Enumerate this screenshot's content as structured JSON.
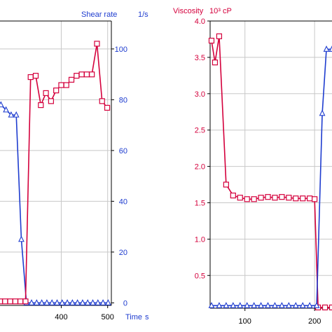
{
  "colors": {
    "viscosity": "#d4003c",
    "shear_rate": "#1e3ccf",
    "grid": "#c8c8c8",
    "axis": "#000000",
    "label_blue": "#1e3ccf",
    "label_red": "#d4003c"
  },
  "chart_data": [
    {
      "type": "line",
      "title": "",
      "xlabel": "Time s",
      "xlabel_unit": "s",
      "x_axis_label": "Time",
      "x_ticks": [
        400,
        500
      ],
      "xlim": [
        268,
        508
      ],
      "y2label": "Shear rate",
      "y2_unit": "1/s",
      "y2_ticks": [
        0,
        20,
        40,
        60,
        80,
        100
      ],
      "y2lim": [
        -1,
        111
      ],
      "grid": true,
      "series": [
        {
          "name": "Viscosity",
          "axis": "left",
          "ylim": [
            0.97,
            3.1
          ],
          "marker": "square",
          "x": [
            268,
            279,
            290,
            301,
            312,
            323,
            334,
            345,
            356,
            367,
            378,
            389,
            400,
            411,
            422,
            433,
            444,
            455,
            466,
            477,
            488,
            499
          ],
          "y": [
            1.0,
            1.0,
            1.0,
            1.0,
            1.0,
            1.0,
            2.68,
            2.69,
            2.47,
            2.56,
            2.5,
            2.58,
            2.62,
            2.62,
            2.66,
            2.69,
            2.7,
            2.7,
            2.7,
            2.93,
            2.5,
            2.45
          ]
        },
        {
          "name": "Shear rate",
          "axis": "right",
          "marker": "triangle",
          "x": [
            270,
            281,
            292,
            303,
            314,
            325,
            336,
            347,
            358,
            369,
            380,
            391,
            402,
            413,
            424,
            435,
            446,
            457,
            468,
            479,
            490,
            501
          ],
          "y": [
            78,
            76,
            74,
            74,
            25,
            0,
            0,
            0,
            0,
            0,
            0,
            0,
            0,
            0,
            0,
            0,
            0,
            0,
            0,
            0,
            0,
            0
          ]
        }
      ]
    },
    {
      "type": "line",
      "title": "",
      "xlabel": "",
      "x_ticks": [
        100,
        200
      ],
      "xlim": [
        50,
        225
      ],
      "ylabel": "Viscosity 10³ cP",
      "y_axis_label": "Viscosity",
      "y_unit": "10³ cP",
      "y_ticks": [
        "0.5",
        "1.0",
        "1.5",
        "2.0",
        "2.5",
        "3.0",
        "3.5",
        "4.0"
      ],
      "ylim": [
        0.05,
        4.0
      ],
      "grid": true,
      "series": [
        {
          "name": "Viscosity",
          "axis": "left",
          "marker": "square",
          "x": [
            52,
            57,
            63,
            73,
            83,
            93,
            103,
            113,
            123,
            133,
            143,
            153,
            163,
            173,
            183,
            193,
            200,
            205,
            215,
            225
          ],
          "y": [
            3.73,
            3.43,
            3.79,
            1.75,
            1.6,
            1.57,
            1.55,
            1.55,
            1.57,
            1.58,
            1.57,
            1.58,
            1.57,
            1.56,
            1.56,
            1.56,
            1.55,
            0.06,
            0.06,
            0.06
          ]
        },
        {
          "name": "Shear rate",
          "axis": "right",
          "marker": "triangle",
          "ylim": [
            -1,
            111
          ],
          "x": [
            52,
            63,
            73,
            83,
            93,
            103,
            113,
            123,
            133,
            143,
            153,
            163,
            173,
            183,
            193,
            203,
            211,
            217,
            225
          ],
          "y": [
            0,
            0,
            0,
            0,
            0,
            0,
            0,
            0,
            0,
            0,
            0,
            0,
            0,
            0,
            0,
            0,
            75,
            100,
            100
          ]
        }
      ]
    }
  ]
}
